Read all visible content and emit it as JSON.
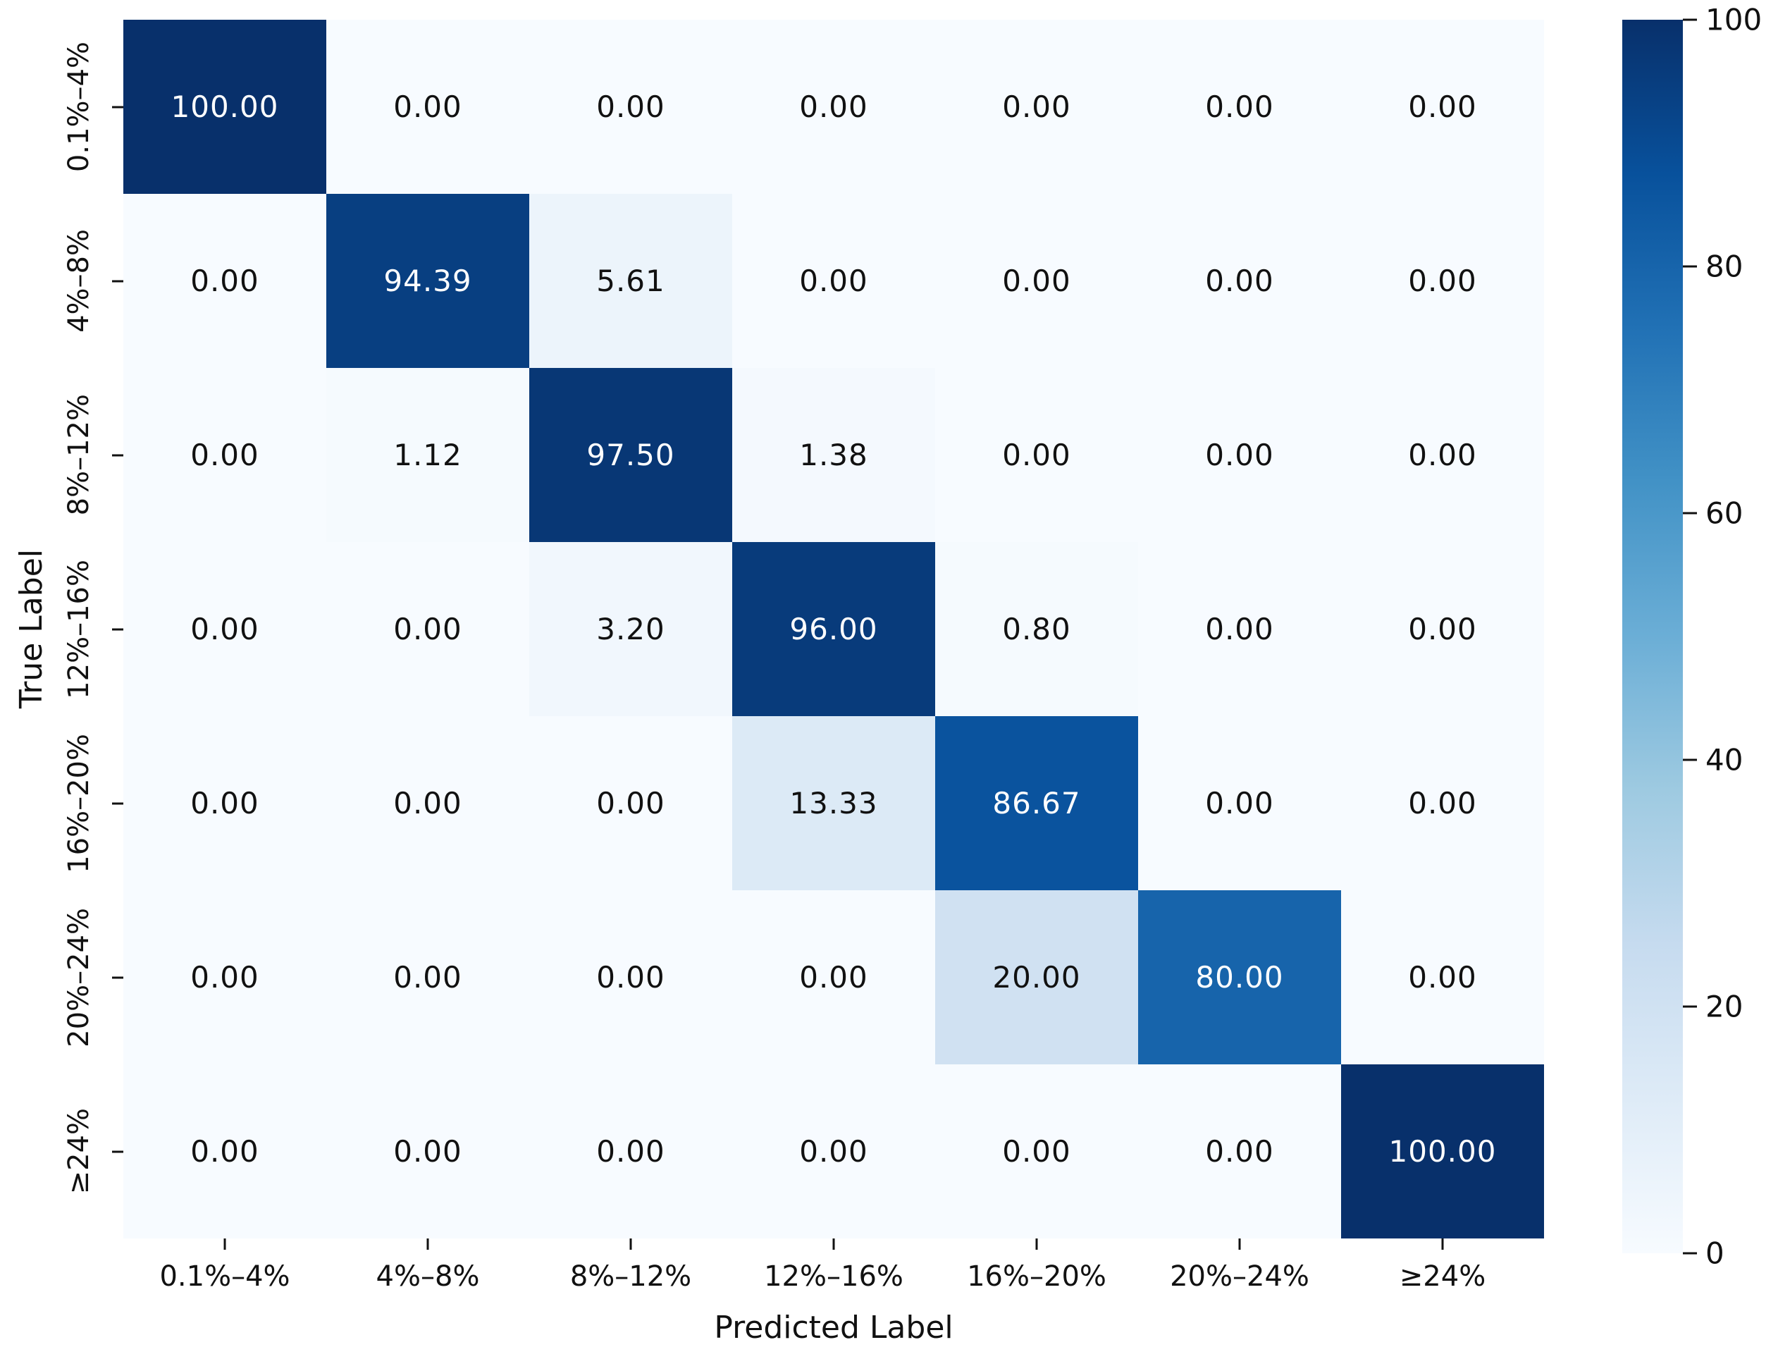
{
  "chart_data": {
    "type": "heatmap",
    "title": "",
    "xlabel": "Predicted Label",
    "ylabel": "True Label",
    "categories": [
      "0.1%–4%",
      "4%–8%",
      "8%–12%",
      "12%–16%",
      "16%–20%",
      "20%–24%",
      "≥24%"
    ],
    "matrix": [
      [
        100.0,
        0.0,
        0.0,
        0.0,
        0.0,
        0.0,
        0.0
      ],
      [
        0.0,
        94.39,
        5.61,
        0.0,
        0.0,
        0.0,
        0.0
      ],
      [
        0.0,
        1.12,
        97.5,
        1.38,
        0.0,
        0.0,
        0.0
      ],
      [
        0.0,
        0.0,
        3.2,
        96.0,
        0.8,
        0.0,
        0.0
      ],
      [
        0.0,
        0.0,
        0.0,
        13.33,
        86.67,
        0.0,
        0.0
      ],
      [
        0.0,
        0.0,
        0.0,
        0.0,
        20.0,
        80.0,
        0.0
      ],
      [
        0.0,
        0.0,
        0.0,
        0.0,
        0.0,
        0.0,
        100.0
      ]
    ],
    "value_decimals": 2,
    "value_range": [
      0,
      100
    ],
    "grid": false,
    "colormap": {
      "name": "Blues",
      "stops": [
        [
          0.0,
          "#f7fbff"
        ],
        [
          0.125,
          "#deebf7"
        ],
        [
          0.25,
          "#c6dbef"
        ],
        [
          0.375,
          "#9ecae1"
        ],
        [
          0.5,
          "#6baed6"
        ],
        [
          0.625,
          "#4292c6"
        ],
        [
          0.75,
          "#2171b5"
        ],
        [
          0.875,
          "#08519c"
        ],
        [
          1.0,
          "#08306b"
        ]
      ]
    },
    "annotation_colors": {
      "on_dark": "#ffffff",
      "on_light": "#111111",
      "threshold": 50
    },
    "colorbar": {
      "position": "right",
      "min": 0,
      "max": 100,
      "ticks": [
        100,
        80,
        60,
        40,
        20,
        0
      ]
    }
  }
}
